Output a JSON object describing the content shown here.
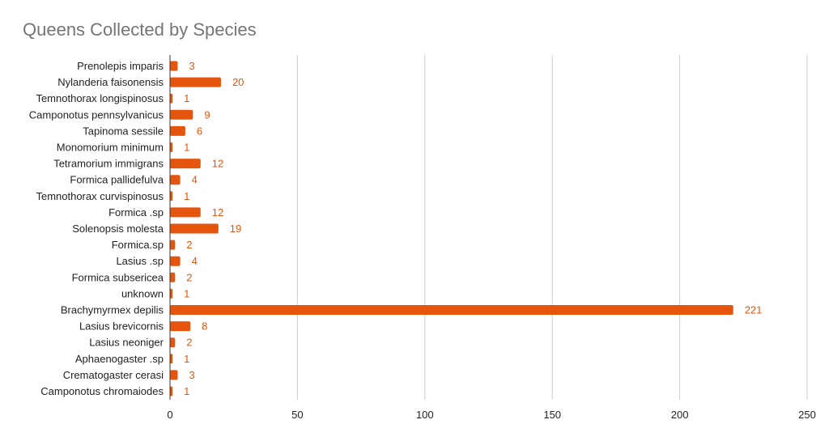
{
  "chart_data": {
    "type": "bar",
    "orientation": "horizontal",
    "title": "Queens Collected by Species",
    "xlabel": "",
    "ylabel": "",
    "categories": [
      "Prenolepis imparis",
      "Nylanderia faisonensis",
      "Temnothorax longispinosus",
      "Camponotus pennsylvanicus",
      "Tapinoma sessile",
      "Monomorium minimum",
      "Tetramorium immigrans",
      "Formica pallidefulva",
      "Temnothorax curvispinosus",
      "Formica .sp",
      "Solenopsis molesta",
      "Formica.sp",
      "Lasius .sp",
      "Formica subsericea",
      "unknown",
      "Brachymyrmex depilis",
      "Lasius brevicornis",
      "Lasius neoniger",
      "Aphaenogaster .sp",
      "Crematogaster cerasi",
      "Camponotus chromaiodes"
    ],
    "values": [
      3,
      20,
      1,
      9,
      6,
      1,
      12,
      4,
      1,
      12,
      19,
      2,
      4,
      2,
      1,
      221,
      8,
      2,
      1,
      3,
      1
    ],
    "xlim": [
      0,
      250
    ],
    "x_ticks": [
      0,
      50,
      100,
      150,
      200,
      250
    ],
    "grid": true,
    "data_labels": true,
    "legend": "none",
    "colors": {
      "bar": "#e6550d",
      "data_label": "#e6550d",
      "grid": "#cccccc",
      "axis": "#333333",
      "text": "#222222",
      "title": "#757575"
    }
  }
}
